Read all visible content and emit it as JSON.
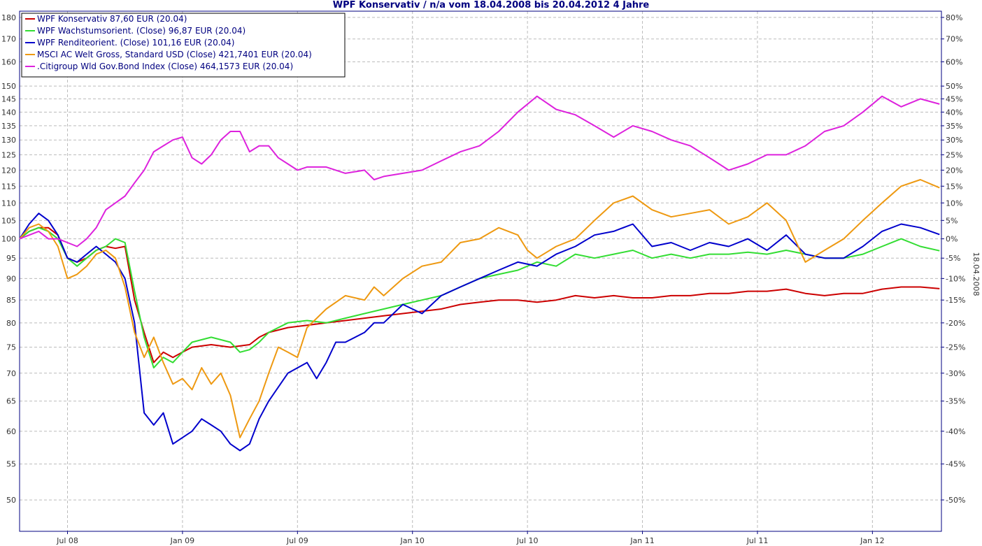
{
  "chart_data": {
    "type": "line",
    "title": "WPF Konservativ / n/a vom 18.04.2008 bis 20.04.2012 4 Jahre",
    "side_label": "18.04.2008",
    "x_tick_labels": [
      "Jul 08",
      "Jan 09",
      "Jul 09",
      "Jan 10",
      "Jul 10",
      "Jan 11",
      "Jul 11",
      "Jan 12"
    ],
    "x_tick_months": [
      2.5,
      8.5,
      14.5,
      20.5,
      26.5,
      32.5,
      38.5,
      44.5
    ],
    "x_range_months": [
      0,
      48.1
    ],
    "y_scale": "log",
    "ylim": [
      46,
      183
    ],
    "y_left_ticks": [
      50,
      55,
      60,
      65,
      70,
      75,
      80,
      85,
      90,
      95,
      100,
      105,
      110,
      115,
      120,
      125,
      130,
      135,
      140,
      145,
      150,
      160,
      170,
      180
    ],
    "y_right_ticks": [
      -50,
      -45,
      -40,
      -35,
      -30,
      -25,
      -20,
      -15,
      -10,
      -5,
      0,
      5,
      10,
      15,
      20,
      25,
      30,
      35,
      40,
      45,
      50,
      60,
      70,
      80
    ],
    "y_right_unit": "%",
    "grid": true,
    "legend_position": "top-left",
    "series": [
      {
        "name": "WPF Konservativ 87,60 EUR (20.04)",
        "color": "#cc0000",
        "points": [
          [
            0,
            100
          ],
          [
            0.5,
            102
          ],
          [
            1,
            103
          ],
          [
            1.5,
            103
          ],
          [
            2,
            101
          ],
          [
            2.5,
            95
          ],
          [
            3,
            94
          ],
          [
            3.5,
            95
          ],
          [
            4,
            97
          ],
          [
            4.5,
            98
          ],
          [
            5,
            97.5
          ],
          [
            5.5,
            98
          ],
          [
            6,
            85
          ],
          [
            6.5,
            78
          ],
          [
            7,
            72
          ],
          [
            7.5,
            74
          ],
          [
            8,
            73
          ],
          [
            8.5,
            74
          ],
          [
            9,
            75
          ],
          [
            10,
            75.5
          ],
          [
            11,
            75
          ],
          [
            12,
            75.5
          ],
          [
            12.5,
            77
          ],
          [
            13,
            78
          ],
          [
            14,
            79
          ],
          [
            15,
            79.5
          ],
          [
            16,
            80
          ],
          [
            17,
            80.5
          ],
          [
            18,
            81
          ],
          [
            19,
            81.5
          ],
          [
            20,
            82
          ],
          [
            21,
            82.5
          ],
          [
            22,
            83
          ],
          [
            23,
            84
          ],
          [
            24,
            84.5
          ],
          [
            25,
            85
          ],
          [
            26,
            85
          ],
          [
            27,
            84.5
          ],
          [
            28,
            85
          ],
          [
            29,
            86
          ],
          [
            30,
            85.5
          ],
          [
            31,
            86
          ],
          [
            32,
            85.5
          ],
          [
            33,
            85.5
          ],
          [
            34,
            86
          ],
          [
            35,
            86
          ],
          [
            36,
            86.5
          ],
          [
            37,
            86.5
          ],
          [
            38,
            87
          ],
          [
            39,
            87
          ],
          [
            40,
            87.5
          ],
          [
            41,
            86.5
          ],
          [
            42,
            86
          ],
          [
            43,
            86.5
          ],
          [
            44,
            86.5
          ],
          [
            45,
            87.5
          ],
          [
            46,
            88
          ],
          [
            47,
            88
          ],
          [
            48,
            87.6
          ]
        ]
      },
      {
        "name": "WPF Wachstumsorient. (Close) 96,87 EUR (20.04)",
        "color": "#33dd33",
        "points": [
          [
            0,
            100
          ],
          [
            0.5,
            102
          ],
          [
            1,
            103
          ],
          [
            1.5,
            102
          ],
          [
            2,
            100
          ],
          [
            2.5,
            95
          ],
          [
            3,
            93
          ],
          [
            3.5,
            95
          ],
          [
            4,
            97
          ],
          [
            4.5,
            98
          ],
          [
            5,
            100
          ],
          [
            5.5,
            99
          ],
          [
            6,
            87
          ],
          [
            6.5,
            77
          ],
          [
            7,
            71
          ],
          [
            7.5,
            73
          ],
          [
            8,
            72
          ],
          [
            8.5,
            74
          ],
          [
            9,
            76
          ],
          [
            10,
            77
          ],
          [
            11,
            76
          ],
          [
            11.5,
            74
          ],
          [
            12,
            74.5
          ],
          [
            12.5,
            76
          ],
          [
            13,
            78
          ],
          [
            14,
            80
          ],
          [
            15,
            80.5
          ],
          [
            16,
            80
          ],
          [
            17,
            81
          ],
          [
            18,
            82
          ],
          [
            19,
            83
          ],
          [
            20,
            84
          ],
          [
            21,
            85
          ],
          [
            22,
            86
          ],
          [
            23,
            88
          ],
          [
            24,
            90
          ],
          [
            25,
            91
          ],
          [
            26,
            92
          ],
          [
            27,
            94
          ],
          [
            28,
            93
          ],
          [
            29,
            96
          ],
          [
            30,
            95
          ],
          [
            31,
            96
          ],
          [
            32,
            97
          ],
          [
            33,
            95
          ],
          [
            34,
            96
          ],
          [
            35,
            95
          ],
          [
            36,
            96
          ],
          [
            37,
            96
          ],
          [
            38,
            96.5
          ],
          [
            39,
            96
          ],
          [
            40,
            97
          ],
          [
            41,
            96
          ],
          [
            42,
            95
          ],
          [
            43,
            95
          ],
          [
            44,
            96
          ],
          [
            45,
            98
          ],
          [
            46,
            100
          ],
          [
            47,
            98
          ],
          [
            48,
            96.87
          ]
        ]
      },
      {
        "name": "WPF Renditeorient. (Close) 101,16 EUR (20.04)",
        "color": "#0000cc",
        "points": [
          [
            0,
            100
          ],
          [
            0.5,
            104
          ],
          [
            1,
            107
          ],
          [
            1.5,
            105
          ],
          [
            2,
            101
          ],
          [
            2.5,
            95
          ],
          [
            3,
            94
          ],
          [
            3.5,
            96
          ],
          [
            4,
            98
          ],
          [
            4.5,
            96
          ],
          [
            5,
            94
          ],
          [
            5.5,
            90
          ],
          [
            6,
            80
          ],
          [
            6.5,
            63
          ],
          [
            7,
            61
          ],
          [
            7.5,
            63
          ],
          [
            8,
            58
          ],
          [
            8.5,
            59
          ],
          [
            9,
            60
          ],
          [
            9.5,
            62
          ],
          [
            10,
            61
          ],
          [
            10.5,
            60
          ],
          [
            11,
            58
          ],
          [
            11.5,
            57
          ],
          [
            12,
            58
          ],
          [
            12.5,
            62
          ],
          [
            13,
            65
          ],
          [
            14,
            70
          ],
          [
            15,
            72
          ],
          [
            15.5,
            69
          ],
          [
            16,
            72
          ],
          [
            16.5,
            76
          ],
          [
            17,
            76
          ],
          [
            18,
            78
          ],
          [
            18.5,
            80
          ],
          [
            19,
            80
          ],
          [
            20,
            84
          ],
          [
            21,
            82
          ],
          [
            22,
            86
          ],
          [
            23,
            88
          ],
          [
            24,
            90
          ],
          [
            25,
            92
          ],
          [
            26,
            94
          ],
          [
            27,
            93
          ],
          [
            28,
            96
          ],
          [
            29,
            98
          ],
          [
            30,
            101
          ],
          [
            31,
            102
          ],
          [
            32,
            104
          ],
          [
            33,
            98
          ],
          [
            34,
            99
          ],
          [
            35,
            97
          ],
          [
            36,
            99
          ],
          [
            37,
            98
          ],
          [
            38,
            100
          ],
          [
            39,
            97
          ],
          [
            40,
            101
          ],
          [
            41,
            96
          ],
          [
            42,
            95
          ],
          [
            43,
            95
          ],
          [
            44,
            98
          ],
          [
            45,
            102
          ],
          [
            46,
            104
          ],
          [
            47,
            103
          ],
          [
            48,
            101.16
          ]
        ]
      },
      {
        "name": "MSCI AC Welt Gross, Standard USD (Close) 421,7401 EUR (20.04)",
        "color": "#ee9911",
        "points": [
          [
            0,
            100
          ],
          [
            0.5,
            103
          ],
          [
            1,
            104
          ],
          [
            1.5,
            102
          ],
          [
            2,
            98
          ],
          [
            2.5,
            90
          ],
          [
            3,
            91
          ],
          [
            3.5,
            93
          ],
          [
            4,
            96
          ],
          [
            4.5,
            97
          ],
          [
            5,
            95
          ],
          [
            5.5,
            88
          ],
          [
            6,
            78
          ],
          [
            6.5,
            73
          ],
          [
            7,
            77
          ],
          [
            7.5,
            72
          ],
          [
            8,
            68
          ],
          [
            8.5,
            69
          ],
          [
            9,
            67
          ],
          [
            9.5,
            71
          ],
          [
            10,
            68
          ],
          [
            10.5,
            70
          ],
          [
            11,
            66
          ],
          [
            11.5,
            59
          ],
          [
            12,
            62
          ],
          [
            12.5,
            65
          ],
          [
            13,
            70
          ],
          [
            13.5,
            75
          ],
          [
            14,
            74
          ],
          [
            14.5,
            73
          ],
          [
            15,
            79
          ],
          [
            16,
            83
          ],
          [
            17,
            86
          ],
          [
            18,
            85
          ],
          [
            18.5,
            88
          ],
          [
            19,
            86
          ],
          [
            20,
            90
          ],
          [
            21,
            93
          ],
          [
            22,
            94
          ],
          [
            23,
            99
          ],
          [
            24,
            100
          ],
          [
            25,
            103
          ],
          [
            26,
            101
          ],
          [
            26.5,
            97
          ],
          [
            27,
            95
          ],
          [
            28,
            98
          ],
          [
            29,
            100
          ],
          [
            30,
            105
          ],
          [
            31,
            110
          ],
          [
            32,
            112
          ],
          [
            33,
            108
          ],
          [
            34,
            106
          ],
          [
            35,
            107
          ],
          [
            36,
            108
          ],
          [
            37,
            104
          ],
          [
            38,
            106
          ],
          [
            39,
            110
          ],
          [
            40,
            105
          ],
          [
            41,
            94
          ],
          [
            42,
            97
          ],
          [
            43,
            100
          ],
          [
            44,
            105
          ],
          [
            45,
            110
          ],
          [
            46,
            115
          ],
          [
            47,
            117
          ],
          [
            48,
            114.5
          ]
        ]
      },
      {
        "name": ".Citigroup Wld Gov.Bond Index (Close) 464,1573 EUR (20.04)",
        "color": "#dd22dd",
        "points": [
          [
            0,
            100
          ],
          [
            1,
            102
          ],
          [
            1.5,
            100
          ],
          [
            2,
            100
          ],
          [
            2.5,
            99
          ],
          [
            3,
            98
          ],
          [
            3.5,
            100
          ],
          [
            4,
            103
          ],
          [
            4.5,
            108
          ],
          [
            5,
            110
          ],
          [
            5.5,
            112
          ],
          [
            6,
            116
          ],
          [
            6.5,
            120
          ],
          [
            7,
            126
          ],
          [
            7.5,
            128
          ],
          [
            8,
            130
          ],
          [
            8.5,
            131
          ],
          [
            9,
            124
          ],
          [
            9.5,
            122
          ],
          [
            10,
            125
          ],
          [
            10.5,
            130
          ],
          [
            11,
            133
          ],
          [
            11.5,
            133
          ],
          [
            12,
            126
          ],
          [
            12.5,
            128
          ],
          [
            13,
            128
          ],
          [
            13.5,
            124
          ],
          [
            14,
            122
          ],
          [
            14.5,
            120
          ],
          [
            15,
            121
          ],
          [
            16,
            121
          ],
          [
            17,
            119
          ],
          [
            18,
            120
          ],
          [
            18.5,
            117
          ],
          [
            19,
            118
          ],
          [
            20,
            119
          ],
          [
            21,
            120
          ],
          [
            22,
            123
          ],
          [
            23,
            126
          ],
          [
            24,
            128
          ],
          [
            25,
            133
          ],
          [
            26,
            140
          ],
          [
            27,
            146
          ],
          [
            28,
            141
          ],
          [
            29,
            139
          ],
          [
            30,
            135
          ],
          [
            31,
            131
          ],
          [
            32,
            135
          ],
          [
            33,
            133
          ],
          [
            34,
            130
          ],
          [
            35,
            128
          ],
          [
            36,
            124
          ],
          [
            37,
            120
          ],
          [
            38,
            122
          ],
          [
            39,
            125
          ],
          [
            40,
            125
          ],
          [
            41,
            128
          ],
          [
            42,
            133
          ],
          [
            43,
            135
          ],
          [
            44,
            140
          ],
          [
            45,
            146
          ],
          [
            46,
            142
          ],
          [
            47,
            145
          ],
          [
            48,
            143
          ]
        ]
      }
    ]
  }
}
